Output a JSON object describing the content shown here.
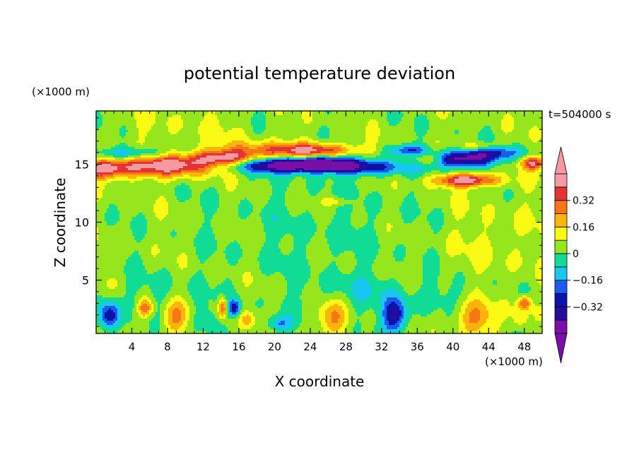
{
  "chart_data": {
    "type": "heatmap",
    "title": "potential temperature deviation",
    "xlabel": "X coordinate",
    "ylabel": "Z coordinate",
    "x_unit": "(×1000 m)",
    "y_unit": "(×1000 m)",
    "time_label": "t=504000 s",
    "xlim": [
      0,
      50
    ],
    "ylim": [
      0.4,
      19.6
    ],
    "x_ticks": [
      4,
      8,
      12,
      16,
      20,
      24,
      28,
      32,
      36,
      40,
      44,
      48
    ],
    "x_tick_labels": [
      "4",
      "8",
      "12",
      "16",
      "20",
      "24",
      "28",
      "32",
      "36",
      "40",
      "44",
      "48"
    ],
    "y_ticks": [
      5,
      10,
      15
    ],
    "y_tick_labels": [
      "5",
      "10",
      "15"
    ],
    "levels": [
      -0.48,
      -0.4,
      -0.32,
      -0.24,
      -0.16,
      -0.08,
      0,
      0.08,
      0.16,
      0.24,
      0.32,
      0.4,
      0.48
    ],
    "colorbar_labels": [
      {
        "value": 0.32,
        "text": "0.32"
      },
      {
        "value": 0.16,
        "text": "0.16"
      },
      {
        "value": 0,
        "text": "0"
      },
      {
        "value": -0.16,
        "text": "−0.16"
      },
      {
        "value": -0.32,
        "text": "−0.32"
      }
    ],
    "colors": [
      "#7a0fa8",
      "#2a0a9c",
      "#0a14a8",
      "#1a5cf0",
      "#18c8f0",
      "#10dc96",
      "#96e61e",
      "#fafa14",
      "#fab40a",
      "#f57814",
      "#e63232",
      "#f59aa0"
    ],
    "features": [
      {
        "x": 1,
        "z": 14.6,
        "sx": 2.5,
        "sz": 0.6,
        "a": 0.42
      },
      {
        "x": 8.5,
        "z": 14.9,
        "sx": 3.5,
        "sz": 0.65,
        "a": 0.42
      },
      {
        "x": 14.5,
        "z": 15.5,
        "sx": 2.5,
        "sz": 0.45,
        "a": 0.34
      },
      {
        "x": 20,
        "z": 16.2,
        "sx": 5,
        "sz": 0.55,
        "a": 0.22
      },
      {
        "x": 25,
        "z": 16.2,
        "sx": 3,
        "sz": 0.4,
        "a": 0.26
      },
      {
        "x": 4,
        "z": 15.9,
        "sx": 3,
        "sz": 0.4,
        "a": -0.22
      },
      {
        "x": 21,
        "z": 14.9,
        "sx": 4,
        "sz": 0.45,
        "a": -0.44
      },
      {
        "x": 25,
        "z": 15.1,
        "sx": 3,
        "sz": 0.4,
        "a": -0.38
      },
      {
        "x": 30,
        "z": 14.7,
        "sx": 3.5,
        "sz": 0.45,
        "a": -0.32
      },
      {
        "x": 35,
        "z": 16.2,
        "sx": 1.5,
        "sz": 0.35,
        "a": -0.28
      },
      {
        "x": 41,
        "z": 15.4,
        "sx": 2.5,
        "sz": 0.5,
        "a": -0.48
      },
      {
        "x": 44.5,
        "z": 16.0,
        "sx": 2.5,
        "sz": 0.4,
        "a": -0.26
      },
      {
        "x": 43,
        "z": 16.5,
        "sx": 1.5,
        "sz": 0.3,
        "a": 0.18
      },
      {
        "x": 41.5,
        "z": 13.6,
        "sx": 2.5,
        "sz": 0.4,
        "a": 0.44
      },
      {
        "x": 49,
        "z": 15.1,
        "sx": 1,
        "sz": 0.4,
        "a": 0.36
      },
      {
        "x": 37,
        "z": 15.4,
        "sx": 1.5,
        "sz": 0.4,
        "a": 0.18
      },
      {
        "x": 27,
        "z": 11.8,
        "sx": 1.2,
        "sz": 0.3,
        "a": 0.12
      },
      {
        "x": 1.5,
        "z": 1.9,
        "sx": 0.8,
        "sz": 0.9,
        "a": -0.38
      },
      {
        "x": 5.5,
        "z": 2.6,
        "sx": 0.6,
        "sz": 0.6,
        "a": 0.3
      },
      {
        "x": 9,
        "z": 1.8,
        "sx": 1,
        "sz": 1.0,
        "a": 0.22
      },
      {
        "x": 14.2,
        "z": 2.6,
        "sx": 0.35,
        "sz": 0.6,
        "a": 0.34
      },
      {
        "x": 15.5,
        "z": 2.6,
        "sx": 0.5,
        "sz": 0.5,
        "a": -0.34
      },
      {
        "x": 17,
        "z": 1.6,
        "sx": 0.6,
        "sz": 0.5,
        "a": 0.14
      },
      {
        "x": 20.5,
        "z": 1.2,
        "sx": 1,
        "sz": 0.5,
        "a": -0.2
      },
      {
        "x": 26.5,
        "z": 1.8,
        "sx": 1.2,
        "sz": 1.0,
        "a": 0.22
      },
      {
        "x": 33.5,
        "z": 1.9,
        "sx": 1,
        "sz": 1.0,
        "a": -0.38
      },
      {
        "x": 42.5,
        "z": 1.8,
        "sx": 1.5,
        "sz": 1.0,
        "a": 0.22
      },
      {
        "x": 48,
        "z": 3.0,
        "sx": 0.5,
        "sz": 0.4,
        "a": 0.3
      },
      {
        "x": 47.5,
        "z": 1.7,
        "sx": 0.6,
        "sz": 0.7,
        "a": 0.14
      },
      {
        "x": 12,
        "z": 1.8,
        "sx": 1,
        "sz": 1,
        "a": -0.1
      },
      {
        "x": 7,
        "z": 3.8,
        "sx": 3,
        "sz": 1.2,
        "a": -0.06
      },
      {
        "x": 30,
        "z": 3.8,
        "sx": 4,
        "sz": 1.2,
        "a": -0.07
      },
      {
        "x": 40,
        "z": 4.0,
        "sx": 3,
        "sz": 1.0,
        "a": -0.06
      },
      {
        "x": 25,
        "z": 9,
        "sx": 8,
        "sz": 4,
        "a": -0.05
      },
      {
        "x": 45,
        "z": 8,
        "sx": 5,
        "sz": 3,
        "a": 0.05
      },
      {
        "x": 10,
        "z": 18,
        "sx": 6,
        "sz": 1.5,
        "a": 0.04
      }
    ]
  }
}
